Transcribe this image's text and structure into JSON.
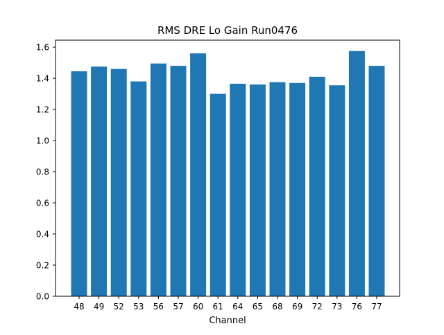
{
  "chart_data": {
    "type": "bar",
    "title": "RMS DRE Lo Gain Run0476",
    "xlabel": "Channel",
    "ylabel": "",
    "categories": [
      "48",
      "49",
      "52",
      "53",
      "56",
      "57",
      "60",
      "61",
      "64",
      "65",
      "68",
      "69",
      "72",
      "73",
      "76",
      "77"
    ],
    "values": [
      1.445,
      1.475,
      1.46,
      1.38,
      1.495,
      1.48,
      1.56,
      1.3,
      1.365,
      1.36,
      1.375,
      1.37,
      1.41,
      1.355,
      1.575,
      1.48
    ],
    "ylim": [
      0,
      1.6
    ],
    "yticks": [
      "0.0",
      "0.2",
      "0.4",
      "0.6",
      "0.8",
      "1.0",
      "1.2",
      "1.4",
      "1.6"
    ],
    "grid": false,
    "legend": "none",
    "colors": {
      "bar": "#1f77b4"
    }
  }
}
